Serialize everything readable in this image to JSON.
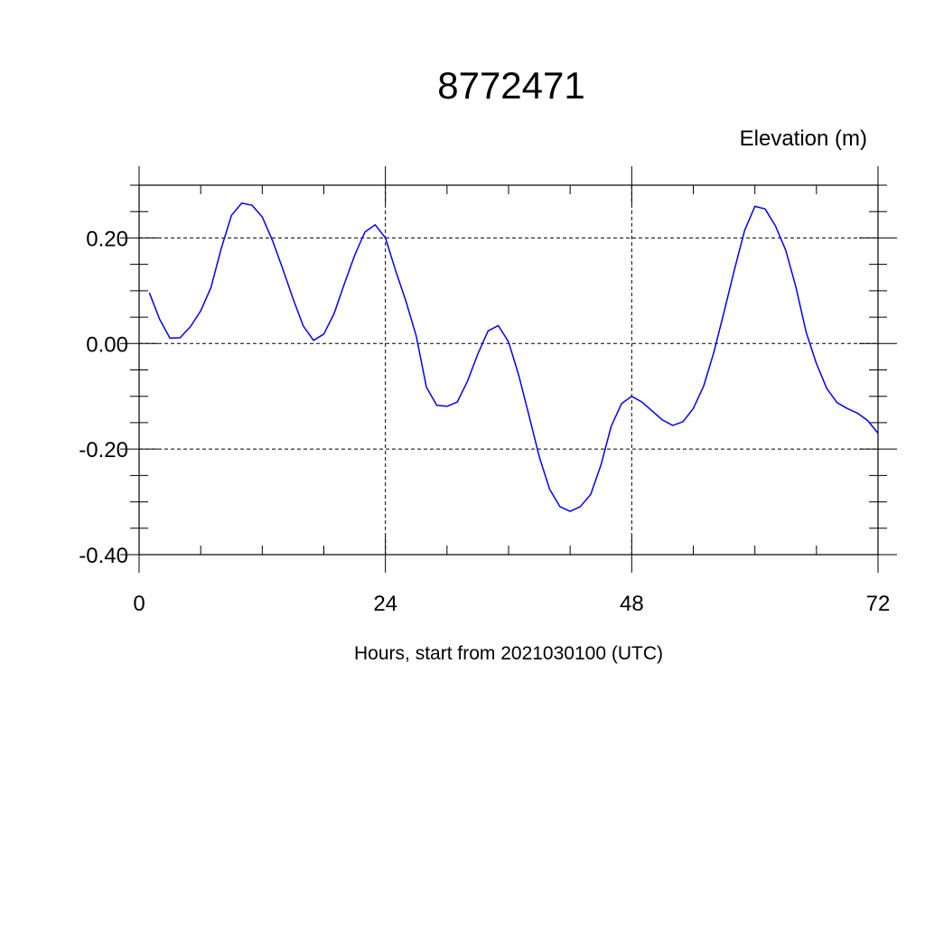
{
  "chart_data": {
    "type": "line",
    "title": "8772471",
    "ylabel": "Elevation (m)",
    "xlabel": "Hours, start from 2021030100 (UTC)",
    "xlim": [
      0,
      72
    ],
    "ylim": [
      -0.4,
      0.3
    ],
    "x_ticks": [
      0,
      24,
      48,
      72
    ],
    "x_tick_labels": [
      "0",
      "24",
      "48",
      "72"
    ],
    "y_ticks": [
      -0.4,
      -0.2,
      0.0,
      0.2
    ],
    "y_tick_labels": [
      "-0.40",
      "-0.20",
      "0.00",
      "0.20"
    ],
    "grid": true,
    "line_color": "#0000ff",
    "series": [
      {
        "x": [
          1,
          2,
          3,
          4,
          5,
          6,
          7,
          8,
          9,
          10,
          11,
          12,
          13,
          14,
          15,
          16,
          17,
          18,
          19,
          20,
          21,
          22,
          23,
          24,
          25,
          26,
          27,
          28,
          29,
          30,
          31,
          32,
          33,
          34,
          35,
          36,
          37,
          38,
          39,
          40,
          41,
          42,
          43,
          44,
          45,
          46,
          47,
          48,
          49,
          50,
          51,
          52,
          53,
          54,
          55,
          56,
          57,
          58,
          59,
          60,
          61,
          62,
          63,
          64,
          65,
          66,
          67,
          68,
          69,
          70,
          71,
          72
        ],
        "y": [
          0.096,
          0.046,
          0.01,
          0.011,
          0.032,
          0.062,
          0.106,
          0.18,
          0.243,
          0.266,
          0.262,
          0.24,
          0.195,
          0.141,
          0.085,
          0.033,
          0.006,
          0.018,
          0.057,
          0.113,
          0.167,
          0.211,
          0.225,
          0.2,
          0.138,
          0.08,
          0.014,
          -0.083,
          -0.117,
          -0.119,
          -0.111,
          -0.071,
          -0.02,
          0.024,
          0.034,
          0.003,
          -0.061,
          -0.137,
          -0.215,
          -0.276,
          -0.309,
          -0.318,
          -0.309,
          -0.286,
          -0.23,
          -0.157,
          -0.114,
          -0.1,
          -0.111,
          -0.128,
          -0.145,
          -0.155,
          -0.148,
          -0.123,
          -0.081,
          -0.017,
          0.06,
          0.139,
          0.214,
          0.26,
          0.255,
          0.223,
          0.177,
          0.107,
          0.021,
          -0.038,
          -0.085,
          -0.112,
          -0.123,
          -0.132,
          -0.146,
          -0.17
        ]
      }
    ]
  }
}
